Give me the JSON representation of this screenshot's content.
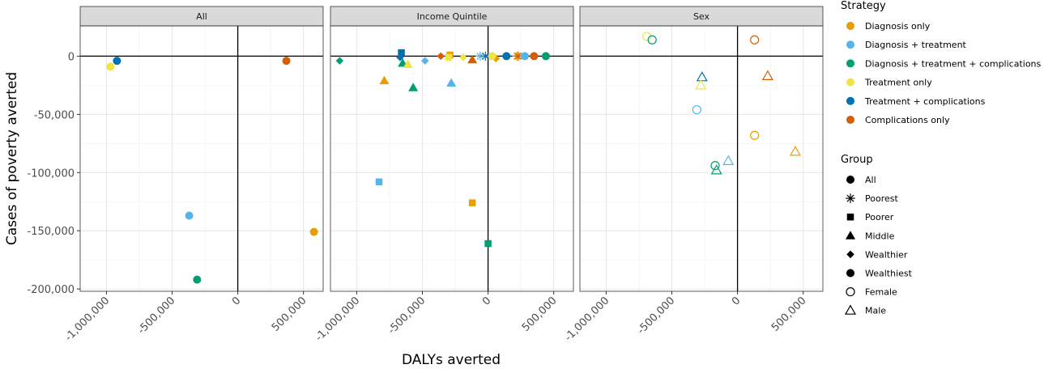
{
  "chart_data": {
    "type": "scatter",
    "xlabel": "DALYs averted",
    "ylabel": "Cases of poverty averted",
    "xlim": [
      -1200000,
      650000
    ],
    "ylim": [
      -202000,
      26000
    ],
    "x_ticks": [
      -1000000,
      -500000,
      0,
      500000
    ],
    "x_tick_labels": [
      "-1,000,000",
      "-500,000",
      "0",
      "500,000"
    ],
    "y_ticks": [
      0,
      -50000,
      -100000,
      -150000,
      -200000
    ],
    "y_tick_labels": [
      "0",
      "-50,000",
      "-100,000",
      "-150,000",
      "-200,000"
    ],
    "grid": true,
    "legend_position": "right",
    "panels": [
      "All",
      "Income Quintile",
      "Sex"
    ],
    "strategies": [
      {
        "name": "Diagnosis only",
        "color": "#E69F00"
      },
      {
        "name": "Diagnosis + treatment",
        "color": "#56B4E9"
      },
      {
        "name": "Diagnosis + treatment + complications",
        "color": "#009E73"
      },
      {
        "name": "Treatment only",
        "color": "#F0E442"
      },
      {
        "name": "Treatment + complications",
        "color": "#0072B2"
      },
      {
        "name": "Complications only",
        "color": "#D55E00"
      }
    ],
    "groups": [
      {
        "name": "All",
        "shape": "circle"
      },
      {
        "name": "Poorest",
        "shape": "asterisk"
      },
      {
        "name": "Poorer",
        "shape": "square"
      },
      {
        "name": "Middle",
        "shape": "triangle"
      },
      {
        "name": "Wealthier",
        "shape": "diamond"
      },
      {
        "name": "Wealthiest",
        "shape": "circle"
      },
      {
        "name": "Female",
        "shape": "circle-open"
      },
      {
        "name": "Male",
        "shape": "triangle-open"
      }
    ],
    "points": [
      {
        "panel": 0,
        "strategy": 0,
        "group": 0,
        "x": 580000,
        "y": -151000
      },
      {
        "panel": 0,
        "strategy": 1,
        "group": 0,
        "x": -370000,
        "y": -137000
      },
      {
        "panel": 0,
        "strategy": 2,
        "group": 0,
        "x": -310000,
        "y": -192000
      },
      {
        "panel": 0,
        "strategy": 3,
        "group": 0,
        "x": -970000,
        "y": -9000
      },
      {
        "panel": 0,
        "strategy": 4,
        "group": 0,
        "x": -920000,
        "y": -4000
      },
      {
        "panel": 0,
        "strategy": 5,
        "group": 0,
        "x": 370000,
        "y": -4000
      },
      {
        "panel": 1,
        "strategy": 1,
        "group": 2,
        "x": -830000,
        "y": -108000
      },
      {
        "panel": 1,
        "strategy": 0,
        "group": 2,
        "x": -120000,
        "y": -126000
      },
      {
        "panel": 1,
        "strategy": 2,
        "group": 2,
        "x": 0,
        "y": -161000
      },
      {
        "panel": 1,
        "strategy": 4,
        "group": 2,
        "x": -660000,
        "y": 3000
      },
      {
        "panel": 1,
        "strategy": 0,
        "group": 2,
        "x": -290000,
        "y": 1000
      },
      {
        "panel": 1,
        "strategy": 3,
        "group": 2,
        "x": -300000,
        "y": -1000
      },
      {
        "panel": 1,
        "strategy": 0,
        "group": 3,
        "x": -790000,
        "y": -21000
      },
      {
        "panel": 1,
        "strategy": 2,
        "group": 3,
        "x": -570000,
        "y": -27000
      },
      {
        "panel": 1,
        "strategy": 1,
        "group": 3,
        "x": -280000,
        "y": -23000
      },
      {
        "panel": 1,
        "strategy": 5,
        "group": 3,
        "x": -120000,
        "y": -3000
      },
      {
        "panel": 1,
        "strategy": 2,
        "group": 3,
        "x": -650000,
        "y": -6000
      },
      {
        "panel": 1,
        "strategy": 3,
        "group": 3,
        "x": -610000,
        "y": -7000
      },
      {
        "panel": 1,
        "strategy": 2,
        "group": 4,
        "x": -1130000,
        "y": -4000
      },
      {
        "panel": 1,
        "strategy": 1,
        "group": 4,
        "x": -480000,
        "y": -4000
      },
      {
        "panel": 1,
        "strategy": 5,
        "group": 4,
        "x": -360000,
        "y": 0
      },
      {
        "panel": 1,
        "strategy": 3,
        "group": 4,
        "x": -190000,
        "y": -1000
      },
      {
        "panel": 1,
        "strategy": 0,
        "group": 4,
        "x": 60000,
        "y": -2000
      },
      {
        "panel": 1,
        "strategy": 4,
        "group": 4,
        "x": -670000,
        "y": -1000
      },
      {
        "panel": 1,
        "strategy": 1,
        "group": 1,
        "x": -60000,
        "y": 0
      },
      {
        "panel": 1,
        "strategy": 4,
        "group": 1,
        "x": -20000,
        "y": 0
      },
      {
        "panel": 1,
        "strategy": 0,
        "group": 1,
        "x": 220000,
        "y": 0
      },
      {
        "panel": 1,
        "strategy": 5,
        "group": 1,
        "x": 230000,
        "y": 0
      },
      {
        "panel": 1,
        "strategy": 3,
        "group": 5,
        "x": 30000,
        "y": 0
      },
      {
        "panel": 1,
        "strategy": 4,
        "group": 5,
        "x": 140000,
        "y": 0
      },
      {
        "panel": 1,
        "strategy": 1,
        "group": 5,
        "x": 280000,
        "y": 0
      },
      {
        "panel": 1,
        "strategy": 5,
        "group": 5,
        "x": 350000,
        "y": 0
      },
      {
        "panel": 1,
        "strategy": 2,
        "group": 5,
        "x": 440000,
        "y": 0
      },
      {
        "panel": 2,
        "strategy": 3,
        "group": 6,
        "x": -690000,
        "y": 17000
      },
      {
        "panel": 2,
        "strategy": 2,
        "group": 6,
        "x": -650000,
        "y": 14000
      },
      {
        "panel": 2,
        "strategy": 5,
        "group": 6,
        "x": 130000,
        "y": 14000
      },
      {
        "panel": 2,
        "strategy": 1,
        "group": 6,
        "x": -310000,
        "y": -46000
      },
      {
        "panel": 2,
        "strategy": 0,
        "group": 6,
        "x": 130000,
        "y": -68000
      },
      {
        "panel": 2,
        "strategy": 2,
        "group": 6,
        "x": -170000,
        "y": -94000
      },
      {
        "panel": 2,
        "strategy": 4,
        "group": 7,
        "x": -270000,
        "y": -18000
      },
      {
        "panel": 2,
        "strategy": 5,
        "group": 7,
        "x": 230000,
        "y": -17000
      },
      {
        "panel": 2,
        "strategy": 3,
        "group": 7,
        "x": -280000,
        "y": -25000
      },
      {
        "panel": 2,
        "strategy": 0,
        "group": 7,
        "x": 440000,
        "y": -82000
      },
      {
        "panel": 2,
        "strategy": 1,
        "group": 7,
        "x": -70000,
        "y": -90000
      },
      {
        "panel": 2,
        "strategy": 2,
        "group": 7,
        "x": -160000,
        "y": -98000
      }
    ]
  },
  "legend": {
    "strategy_title": "Strategy",
    "group_title": "Group"
  }
}
